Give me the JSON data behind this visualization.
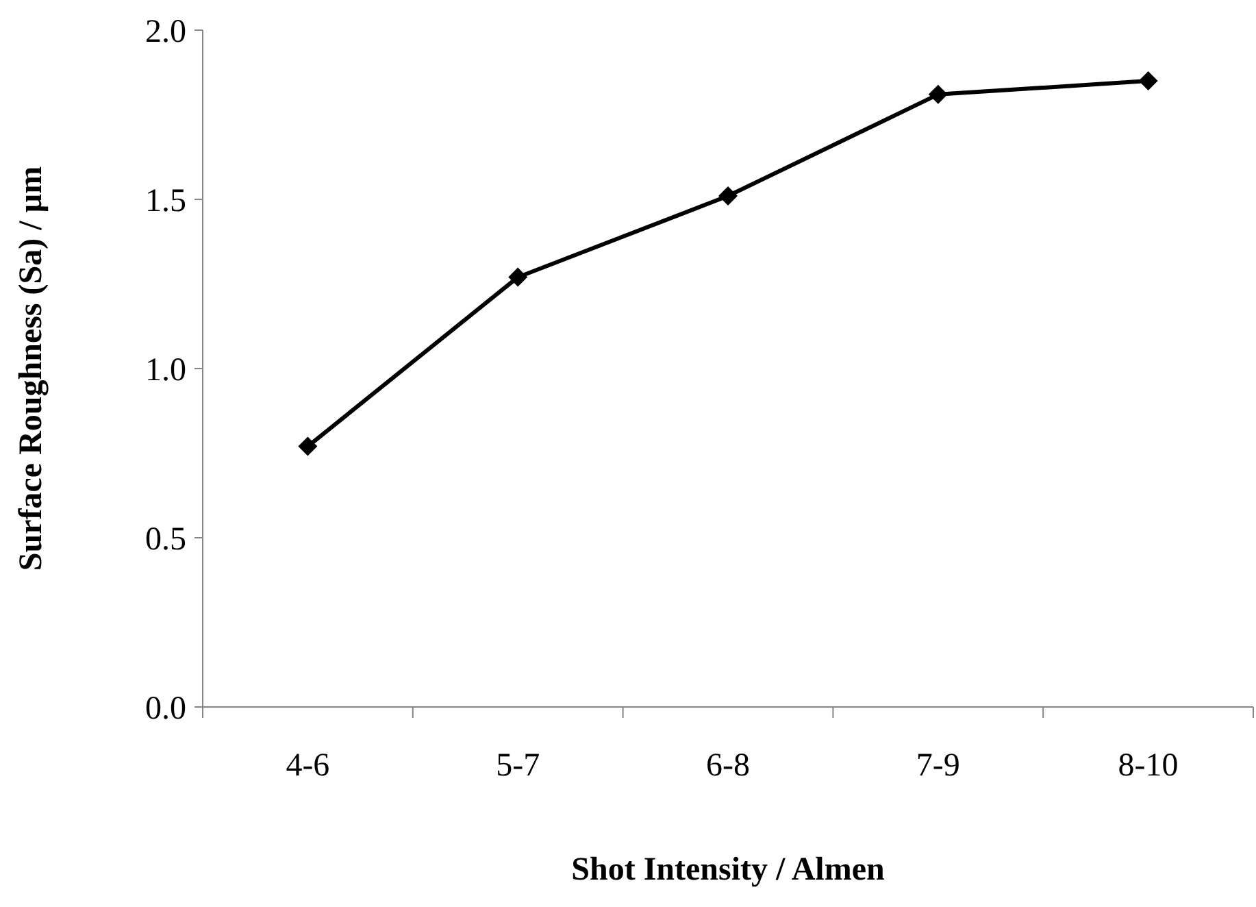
{
  "chart_data": {
    "type": "line",
    "xlabel": "Shot Intensity / Almen",
    "ylabel": "Surface Roughness (Sa) / µm",
    "categories": [
      "4-6",
      "5-7",
      "6-8",
      "7-9",
      "8-10"
    ],
    "series": [
      {
        "color": "#000000",
        "values": [
          0.77,
          1.27,
          1.51,
          1.81,
          1.85
        ]
      }
    ],
    "ylim": [
      0,
      2
    ],
    "yticks": [
      {
        "value": 0,
        "label": "0.0"
      },
      {
        "value": 0.5,
        "label": "0.5"
      },
      {
        "value": 1,
        "label": "1.0"
      },
      {
        "value": 1.5,
        "label": "1.5"
      },
      {
        "value": 2,
        "label": "2.0"
      }
    ],
    "marker": "diamond",
    "line_style": "solid",
    "grid": false
  }
}
